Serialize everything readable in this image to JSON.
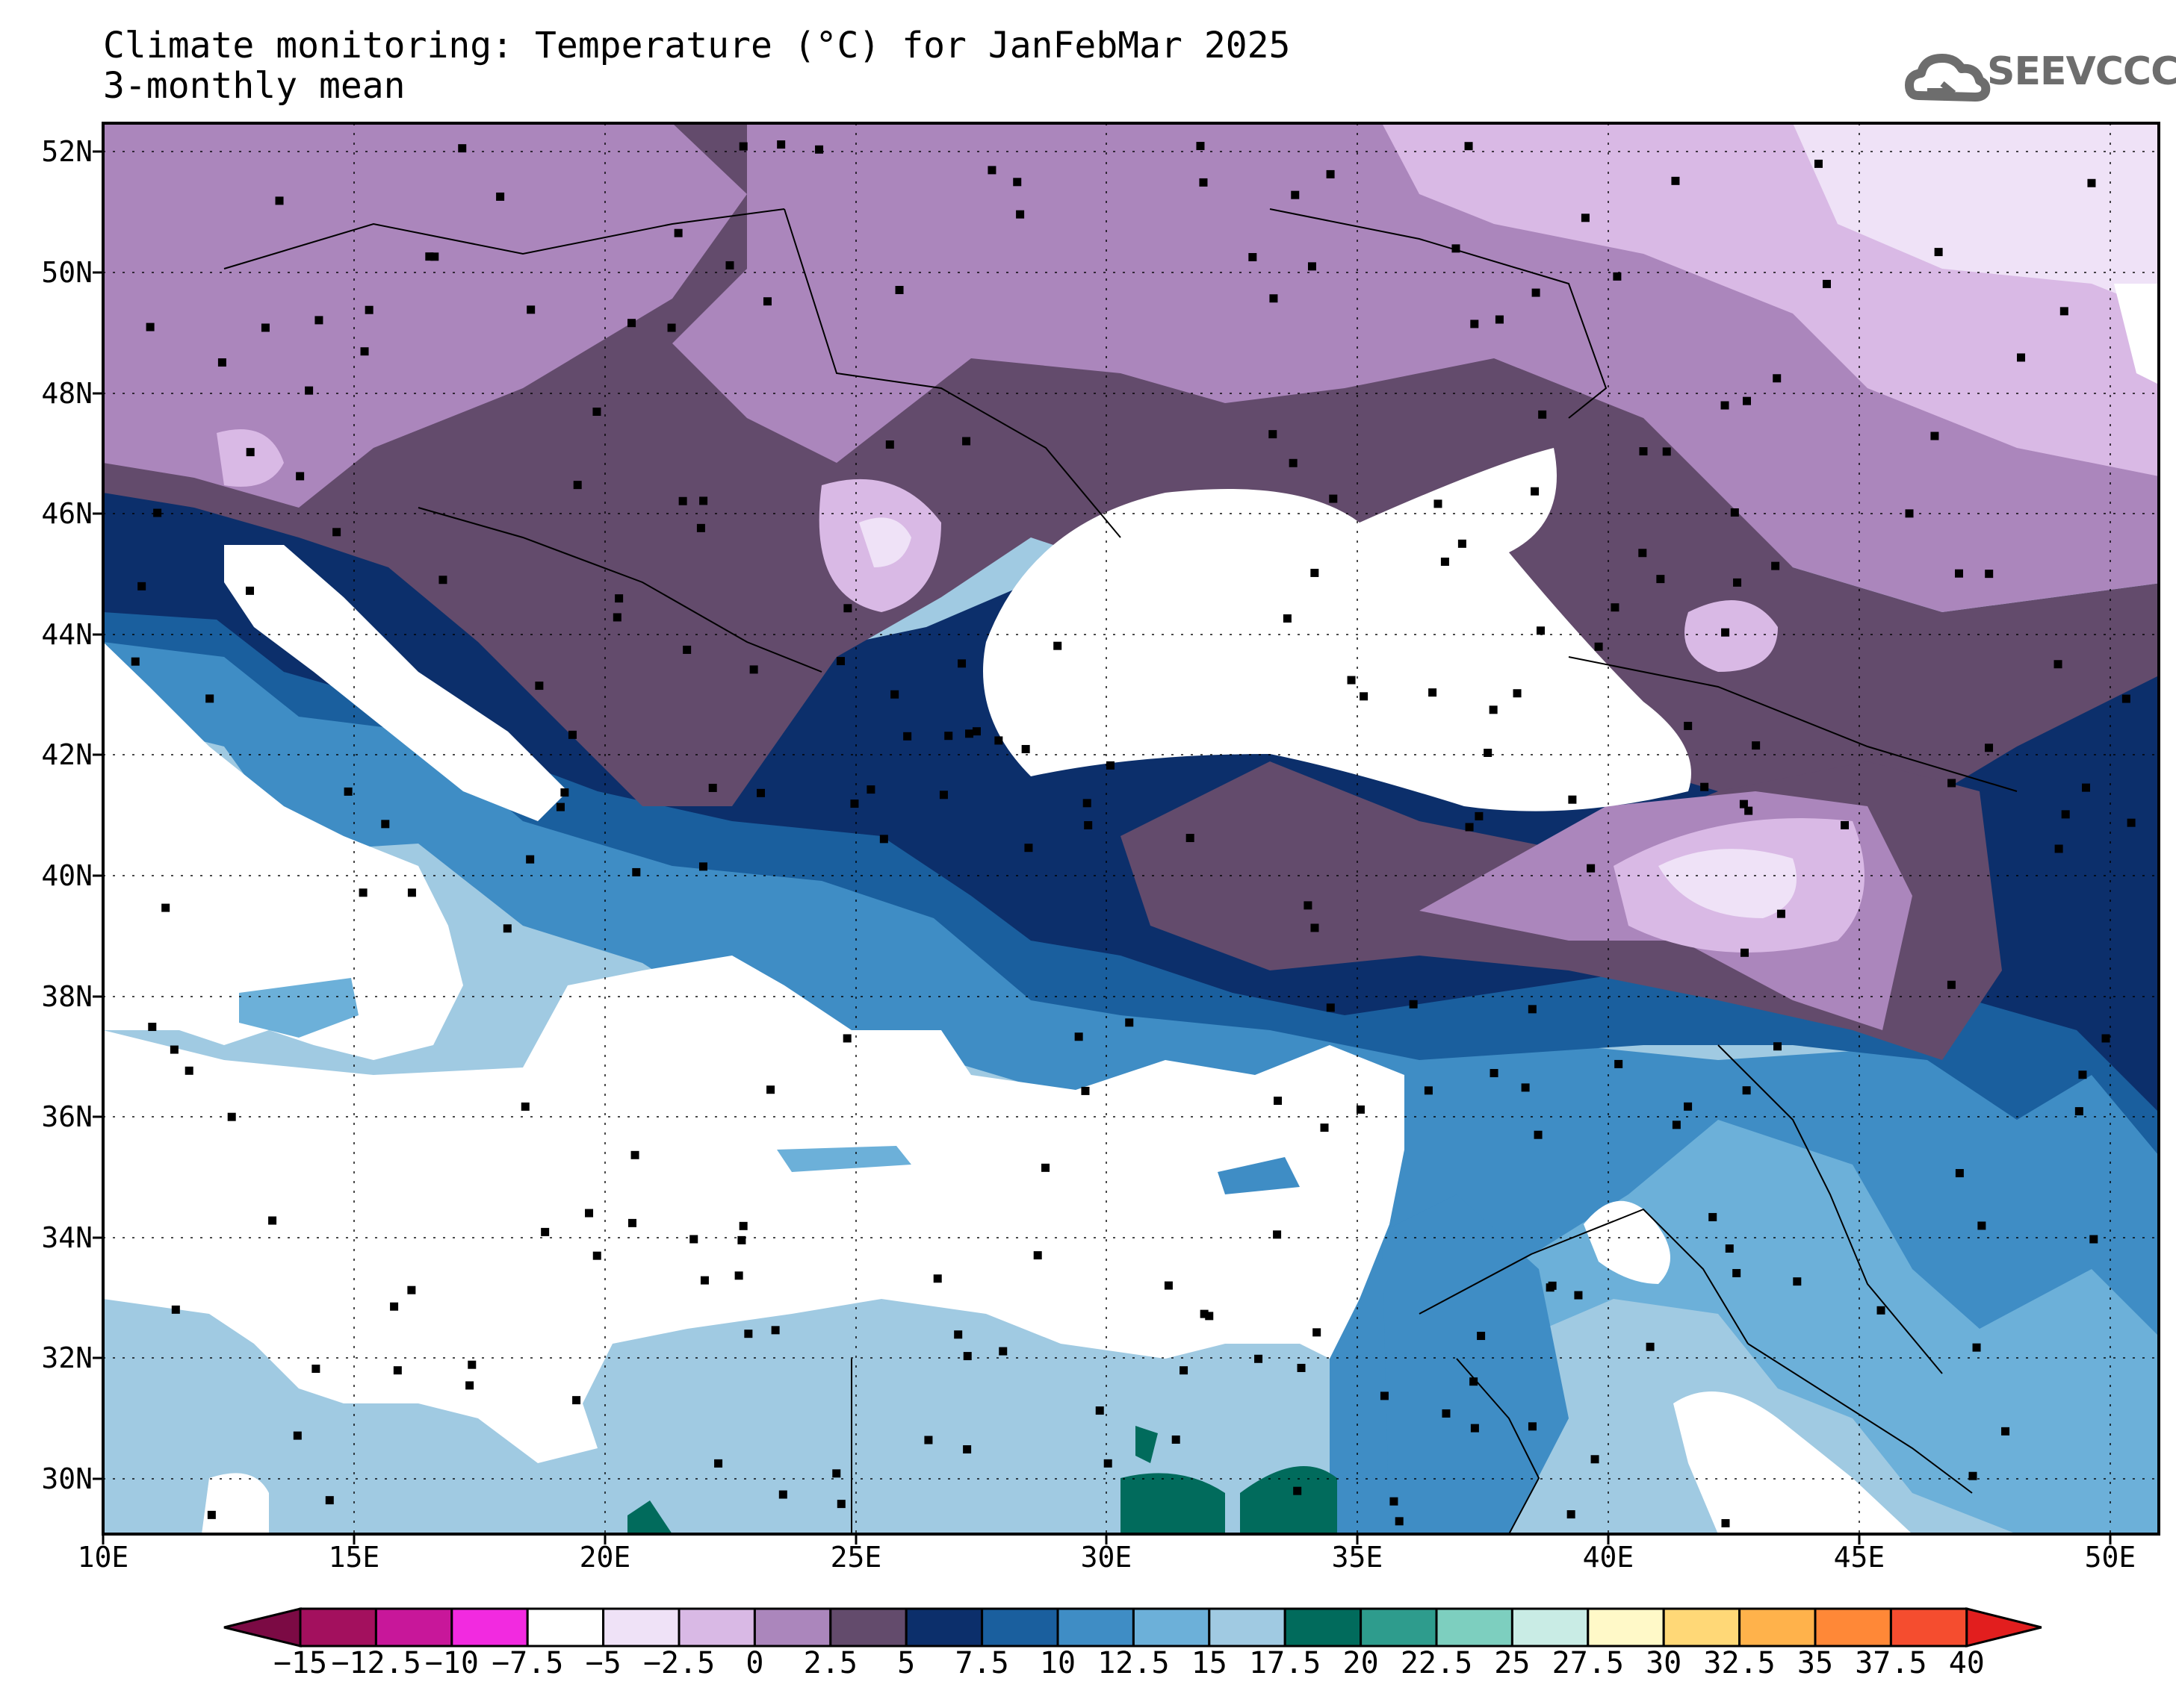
{
  "header": {
    "title_line1": "Climate monitoring: Temperature (°C) for JanFebMar 2025",
    "title_line2": "3-monthly mean",
    "logo_text": "SEEVCCC",
    "logo_icon": "cloud-arrow-icon"
  },
  "map": {
    "lat_labels": [
      "52N",
      "50N",
      "48N",
      "46N",
      "44N",
      "42N",
      "40N",
      "38N",
      "36N",
      "34N",
      "32N",
      "30N"
    ],
    "lon_labels": [
      "10E",
      "15E",
      "20E",
      "25E",
      "30E",
      "35E",
      "40E",
      "45E",
      "50E"
    ],
    "extent": {
      "lon_min": 10,
      "lon_max": 51,
      "lat_min": 29,
      "lat_max": 52.5
    },
    "gridlines": "dotted",
    "stations": "black-square-markers"
  },
  "colorbar": {
    "labels": [
      "-15",
      "-12.5",
      "-10",
      "-7.5",
      "-5",
      "-2.5",
      "0",
      "2.5",
      "5",
      "7.5",
      "10",
      "12.5",
      "15",
      "17.5",
      "20",
      "22.5",
      "25",
      "27.5",
      "30",
      "32.5",
      "35",
      "37.5",
      "40"
    ],
    "colors": [
      "#a3105e",
      "#c8179a",
      "#f22ae0",
      "#ffffff",
      "#efe2f7",
      "#d9b9e5",
      "#ab86bc",
      "#634b6c",
      "#0c2f6b",
      "#1a5f9e",
      "#3f8dc5",
      "#6cb0d9",
      "#a0cae2",
      "#016b5c",
      "#2e9c8d",
      "#7dcfbf",
      "#c9ece5",
      "#fff9c8",
      "#ffd877",
      "#ffb24b",
      "#ff8837",
      "#f54d2f"
    ],
    "low_arrow_color": "#7b0a44",
    "high_arrow_color": "#e21e1e"
  }
}
